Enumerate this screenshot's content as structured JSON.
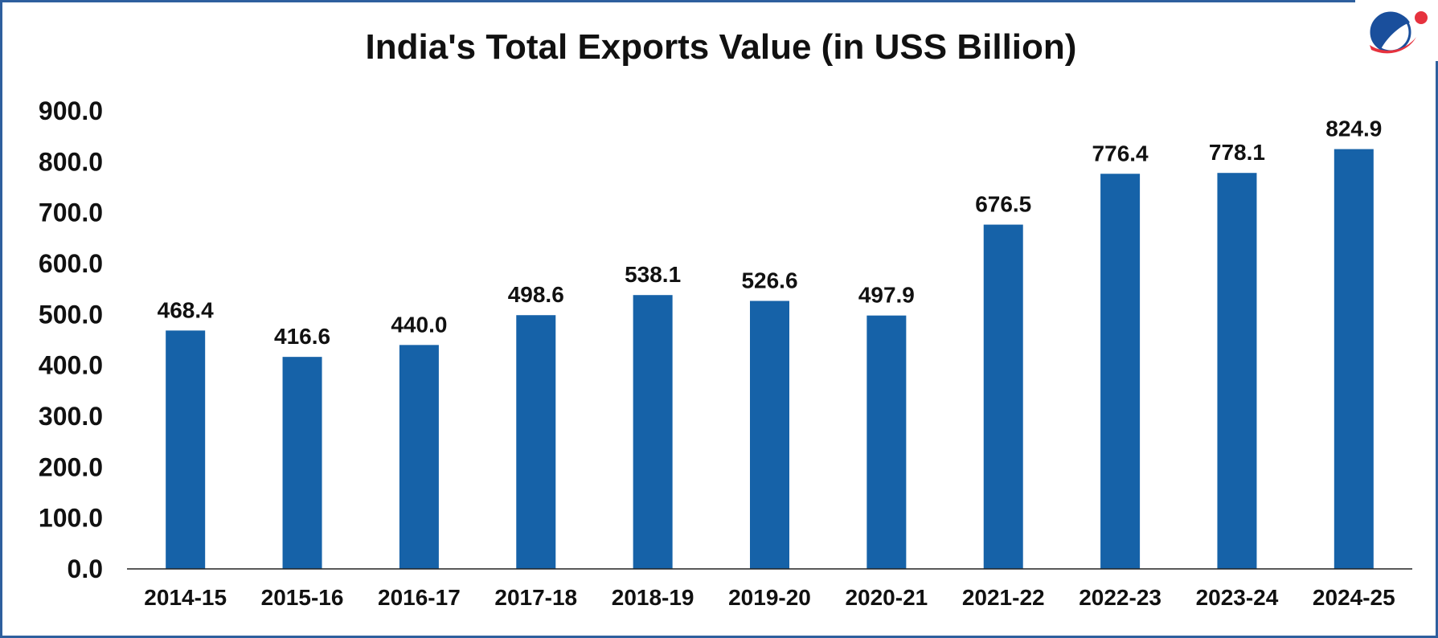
{
  "chart_data": {
    "type": "bar",
    "title": "India's Total Exports Value (in USS Billion)",
    "xlabel": "",
    "ylabel": "",
    "categories": [
      "2014-15",
      "2015-16",
      "2016-17",
      "2017-18",
      "2018-19",
      "2019-20",
      "2020-21",
      "2021-22",
      "2022-23",
      "2023-24",
      "2024-25"
    ],
    "values": [
      468.4,
      416.6,
      440.0,
      498.6,
      538.1,
      526.6,
      497.9,
      676.5,
      776.4,
      778.1,
      824.9
    ],
    "value_labels": [
      "468.4",
      "416.6",
      "440.0",
      "498.6",
      "538.1",
      "526.6",
      "497.9",
      "676.5",
      "776.4",
      "778.1",
      "824.9"
    ],
    "ylim": [
      0,
      900
    ],
    "yticks": [
      0,
      100,
      200,
      300,
      400,
      500,
      600,
      700,
      800,
      900
    ],
    "ytick_labels": [
      "0.0",
      "100.0",
      "200.0",
      "300.0",
      "400.0",
      "500.0",
      "600.0",
      "700.0",
      "800.0",
      "900.0"
    ],
    "grid": false,
    "legend": "none",
    "bar_color": "#1662a8",
    "axis_color": "#222222"
  },
  "colors": {
    "frame": "#2e5f9e",
    "logo_blue": "#1a4f9c",
    "logo_red": "#e6323e"
  },
  "logo": {
    "icon": "globe-logo-icon"
  }
}
